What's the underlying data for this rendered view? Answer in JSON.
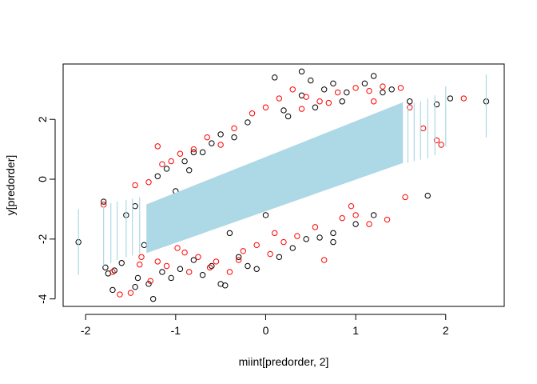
{
  "chart_data": {
    "type": "scatter",
    "title": "",
    "xlabel": "miint[predorder, 2]",
    "ylabel": "y[predorder]",
    "xlim": [
      -2.25,
      2.65
    ],
    "ylim": [
      -4.25,
      3.85
    ],
    "xticks": [
      -2,
      -1,
      0,
      1,
      2
    ],
    "yticks": [
      -4,
      -2,
      0,
      2
    ],
    "grid": false,
    "legend": "none",
    "band": {
      "description_values": {
        "x_start": -1.32,
        "x_end": 1.52,
        "lower_at_start": -2.45,
        "upper_at_start": -0.85,
        "lower_at_end": 0.55,
        "upper_at_end": 2.55
      },
      "color": "#ADD8E6"
    },
    "outer_intervals": [
      {
        "x": -2.08,
        "low": -3.2,
        "high": -1.0
      },
      {
        "x": -1.8,
        "low": -2.9,
        "high": -0.9
      },
      {
        "x": -1.72,
        "low": -2.8,
        "high": -0.8
      },
      {
        "x": -1.65,
        "low": -2.7,
        "high": -0.75
      },
      {
        "x": -1.55,
        "low": -2.6,
        "high": -0.7
      },
      {
        "x": -1.48,
        "low": -2.55,
        "high": -0.65
      },
      {
        "x": -1.4,
        "low": -2.5,
        "high": -0.6
      },
      {
        "x": 1.58,
        "low": 0.55,
        "high": 2.5
      },
      {
        "x": 1.65,
        "low": 0.6,
        "high": 2.55
      },
      {
        "x": 1.72,
        "low": 0.65,
        "high": 2.6
      },
      {
        "x": 1.8,
        "low": 0.7,
        "high": 2.7
      },
      {
        "x": 1.88,
        "low": 0.8,
        "high": 2.8
      },
      {
        "x": 2.0,
        "low": 1.1,
        "high": 3.1
      },
      {
        "x": 2.45,
        "low": 1.4,
        "high": 3.5
      }
    ],
    "series": [
      {
        "color": "#000000",
        "points": [
          [
            -2.08,
            -2.1
          ],
          [
            -1.8,
            -0.75
          ],
          [
            -1.78,
            -2.95
          ],
          [
            -1.75,
            -3.15
          ],
          [
            -1.7,
            -3.7
          ],
          [
            -1.68,
            -3.05
          ],
          [
            -1.6,
            -2.8
          ],
          [
            -1.45,
            -3.6
          ],
          [
            -1.42,
            -3.3
          ],
          [
            -1.3,
            -3.5
          ],
          [
            -1.25,
            -4.0
          ],
          [
            -1.15,
            -3.1
          ],
          [
            -1.05,
            -3.3
          ],
          [
            -0.95,
            -3.0
          ],
          [
            -0.8,
            -2.7
          ],
          [
            -0.7,
            -3.2
          ],
          [
            -0.6,
            -2.9
          ],
          [
            -0.5,
            -3.5
          ],
          [
            -0.45,
            -3.55
          ],
          [
            -0.3,
            -2.6
          ],
          [
            -0.2,
            -2.9
          ],
          [
            -0.1,
            -3.0
          ],
          [
            0.15,
            -2.6
          ],
          [
            0.3,
            -2.3
          ],
          [
            0.45,
            -2.0
          ],
          [
            0.6,
            -1.95
          ],
          [
            0.75,
            -2.1
          ],
          [
            0.75,
            -1.8
          ],
          [
            1.0,
            -1.5
          ],
          [
            1.2,
            -1.2
          ],
          [
            1.8,
            -0.55
          ],
          [
            -1.2,
            0.1
          ],
          [
            -1.1,
            0.35
          ],
          [
            -0.9,
            0.6
          ],
          [
            -0.8,
            0.9
          ],
          [
            -0.6,
            1.2
          ],
          [
            -0.5,
            1.5
          ],
          [
            -0.35,
            1.4
          ],
          [
            -0.2,
            1.9
          ],
          [
            0.1,
            3.4
          ],
          [
            0.2,
            2.3
          ],
          [
            0.4,
            2.8
          ],
          [
            0.4,
            3.6
          ],
          [
            0.5,
            3.3
          ],
          [
            0.65,
            3.0
          ],
          [
            0.75,
            3.2
          ],
          [
            0.9,
            2.9
          ],
          [
            1.1,
            3.2
          ],
          [
            1.2,
            3.45
          ],
          [
            1.3,
            2.9
          ],
          [
            1.4,
            3.0
          ],
          [
            1.6,
            2.6
          ],
          [
            1.9,
            2.5
          ],
          [
            2.05,
            2.7
          ],
          [
            2.45,
            2.6
          ],
          [
            -1.55,
            -1.2
          ],
          [
            -1.45,
            -0.9
          ],
          [
            -1.35,
            -2.2
          ],
          [
            -0.85,
            0.3
          ],
          [
            0.9,
            0.5
          ],
          [
            1.1,
            1.0
          ],
          [
            1.25,
            0.8
          ],
          [
            -0.4,
            -1.8
          ],
          [
            0.0,
            -1.2
          ],
          [
            0.55,
            2.4
          ],
          [
            -1.0,
            -0.4
          ],
          [
            0.85,
            2.6
          ],
          [
            1.45,
            2.2
          ],
          [
            -0.7,
            0.9
          ],
          [
            0.25,
            2.1
          ]
        ]
      },
      {
        "color": "#FF0000",
        "points": [
          [
            -1.8,
            -0.85
          ],
          [
            -1.7,
            -3.1
          ],
          [
            -1.62,
            -3.85
          ],
          [
            -1.5,
            -3.8
          ],
          [
            -1.4,
            -2.85
          ],
          [
            -1.28,
            -3.4
          ],
          [
            -1.2,
            -2.75
          ],
          [
            -1.1,
            -2.9
          ],
          [
            -0.98,
            -2.3
          ],
          [
            -0.85,
            -3.1
          ],
          [
            -0.75,
            -2.6
          ],
          [
            -0.62,
            -2.95
          ],
          [
            -0.55,
            -2.75
          ],
          [
            -0.4,
            -3.1
          ],
          [
            -0.25,
            -2.4
          ],
          [
            -0.1,
            -2.2
          ],
          [
            0.05,
            -2.5
          ],
          [
            0.2,
            -2.1
          ],
          [
            0.35,
            -1.9
          ],
          [
            0.55,
            -1.6
          ],
          [
            0.65,
            -2.7
          ],
          [
            0.85,
            -1.3
          ],
          [
            1.0,
            -1.2
          ],
          [
            1.15,
            -1.5
          ],
          [
            1.35,
            -1.35
          ],
          [
            1.55,
            -0.6
          ],
          [
            -1.45,
            -0.2
          ],
          [
            -1.3,
            -0.1
          ],
          [
            -1.2,
            1.1
          ],
          [
            -1.05,
            0.6
          ],
          [
            -0.95,
            0.85
          ],
          [
            -0.8,
            1.0
          ],
          [
            -0.65,
            1.4
          ],
          [
            -0.5,
            1.15
          ],
          [
            -0.35,
            1.7
          ],
          [
            -0.15,
            2.2
          ],
          [
            0.0,
            2.4
          ],
          [
            0.15,
            2.7
          ],
          [
            0.3,
            3.0
          ],
          [
            0.45,
            2.75
          ],
          [
            0.6,
            2.6
          ],
          [
            0.7,
            2.55
          ],
          [
            0.8,
            2.9
          ],
          [
            1.0,
            3.05
          ],
          [
            1.15,
            2.95
          ],
          [
            1.3,
            3.1
          ],
          [
            1.5,
            3.05
          ],
          [
            1.6,
            2.4
          ],
          [
            1.75,
            1.7
          ],
          [
            1.9,
            1.3
          ],
          [
            1.95,
            1.15
          ],
          [
            2.2,
            2.7
          ],
          [
            -1.38,
            -2.6
          ],
          [
            -0.9,
            -2.45
          ],
          [
            0.1,
            -1.8
          ],
          [
            0.4,
            2.35
          ],
          [
            1.2,
            2.6
          ],
          [
            -0.3,
            -2.7
          ],
          [
            0.95,
            -0.9
          ],
          [
            -1.15,
            0.5
          ]
        ]
      }
    ]
  }
}
